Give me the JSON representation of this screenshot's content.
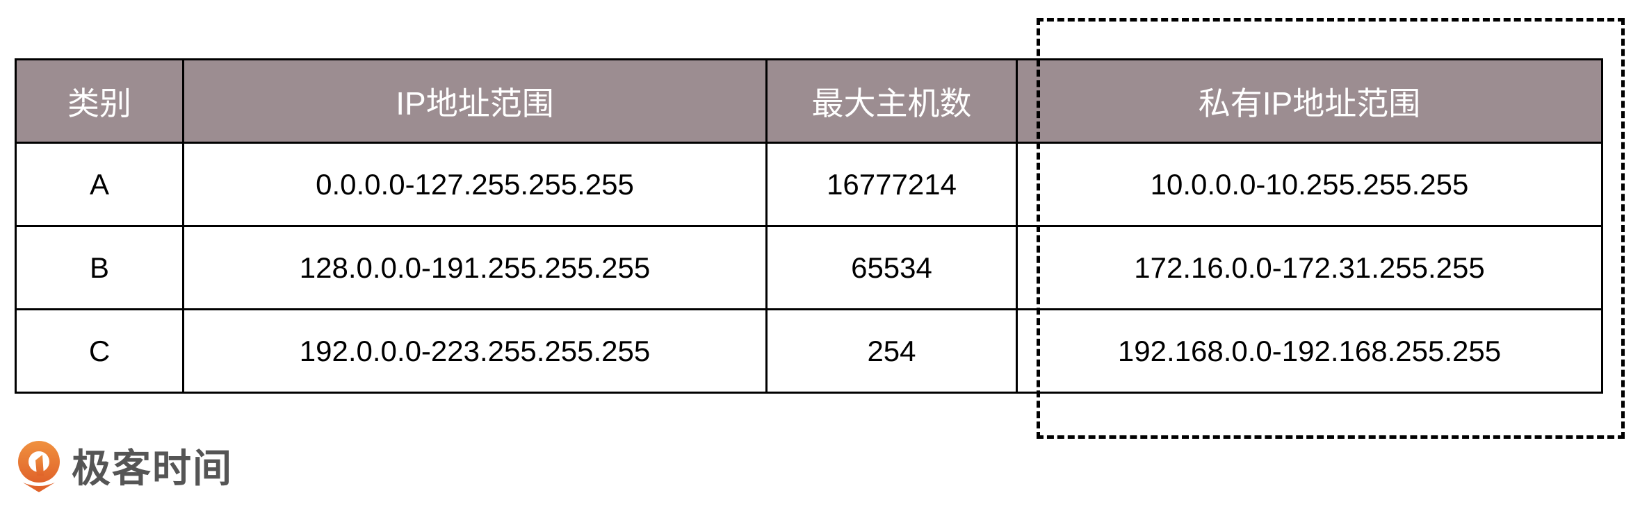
{
  "table": {
    "headers": [
      "类别",
      "IP地址范围",
      "最大主机数",
      "私有IP地址范围"
    ],
    "rows": [
      [
        "A",
        "0.0.0.0-127.255.255.255",
        "16777214",
        "10.0.0.0-10.255.255.255"
      ],
      [
        "B",
        "128.0.0.0-191.255.255.255",
        "65534",
        "172.16.0.0-172.31.255.255"
      ],
      [
        "C",
        "192.0.0.0-223.255.255.255",
        "254",
        "192.168.0.0-192.168.255.255"
      ]
    ],
    "header_color": "#9c8d91",
    "highlight": "dashed box around private IP column"
  },
  "logo": {
    "text": "极客时间",
    "color": "#e8782f"
  }
}
